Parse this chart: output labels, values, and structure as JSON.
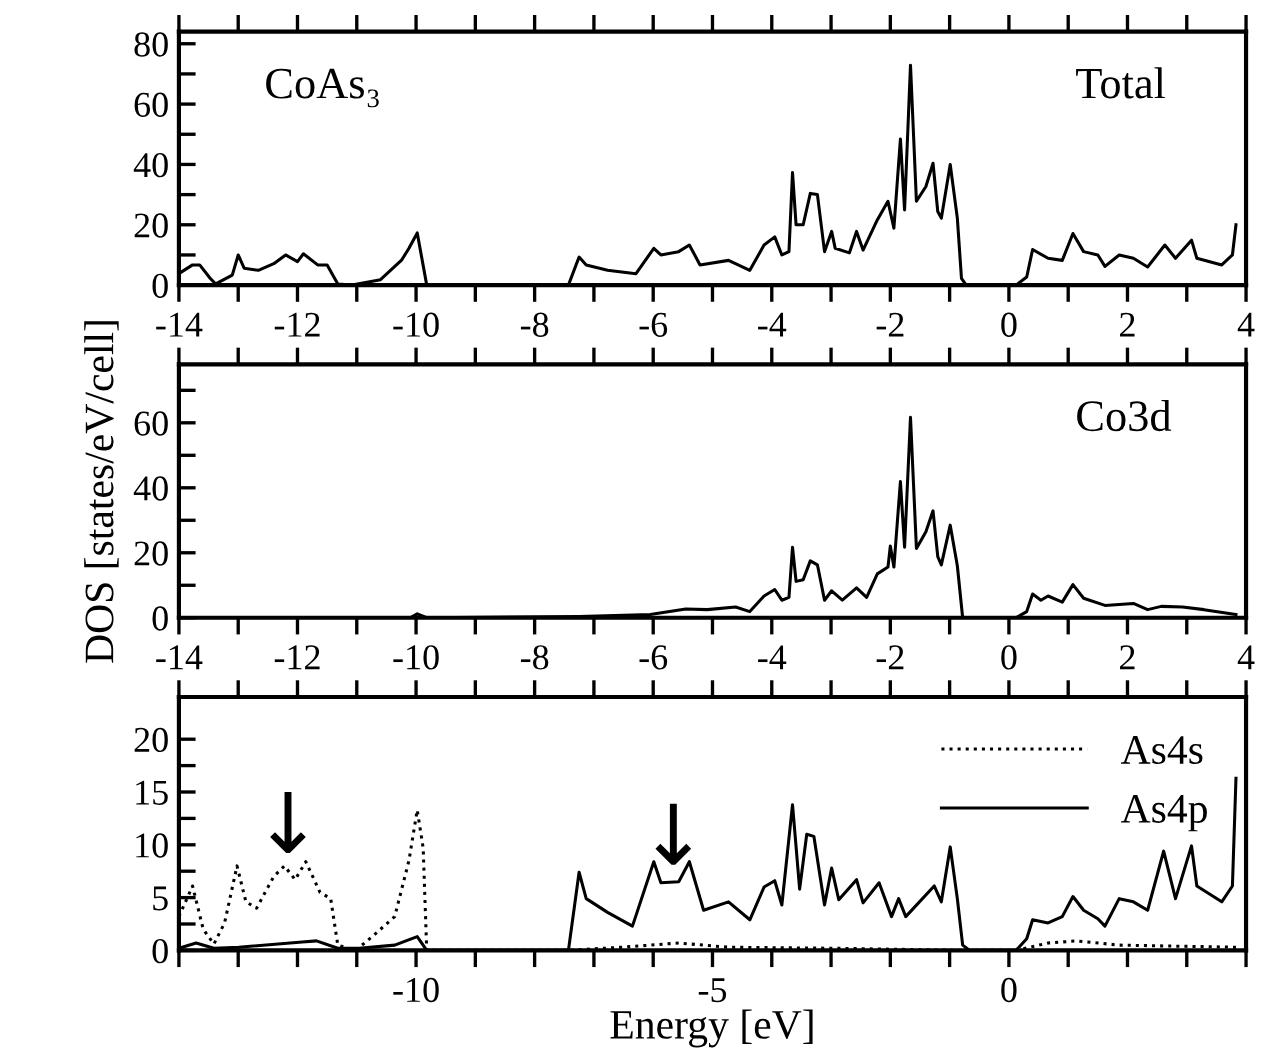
{
  "chart_data": [
    {
      "type": "line",
      "annotations": [
        "CoAs₃",
        "Total"
      ],
      "xlim": [
        -14,
        4
      ],
      "xticks": [
        -14,
        {
          "value": -13,
          "label": null
        },
        -12,
        {
          "value": -11,
          "label": null
        },
        -10,
        {
          "value": -9,
          "label": null
        },
        -8,
        {
          "value": -7,
          "label": null
        },
        -6,
        {
          "value": -5,
          "label": null
        },
        -4,
        {
          "value": -3,
          "label": null
        },
        -2,
        {
          "value": -1,
          "label": null
        },
        0,
        {
          "value": 1,
          "label": null
        },
        2,
        {
          "value": 3,
          "label": null
        },
        4
      ],
      "ylim": [
        0,
        84
      ],
      "yticks": [
        0,
        {
          "value": 10,
          "label": null
        },
        20,
        {
          "value": 30,
          "label": null
        },
        40,
        {
          "value": 50,
          "label": null
        },
        60,
        {
          "value": 70,
          "label": null
        },
        80
      ],
      "series": [
        {
          "color": "#000000",
          "line_style": "solid",
          "x": [
            -14.0,
            -13.77,
            -13.65,
            -13.47,
            -13.38,
            -13.1,
            -13.0,
            -12.9,
            -12.66,
            -12.4,
            -12.2,
            -12.0,
            -11.9,
            -11.66,
            -11.5,
            -11.32,
            -11.08,
            -10.6,
            -10.24,
            -10.12,
            -9.98,
            -9.82,
            -7.43,
            -7.25,
            -7.13,
            -6.77,
            -6.29,
            -5.99,
            -5.87,
            -5.57,
            -5.39,
            -5.21,
            -4.73,
            -4.37,
            -4.13,
            -3.95,
            -3.83,
            -3.71,
            -3.65,
            -3.59,
            -3.47,
            -3.35,
            -3.23,
            -3.11,
            -2.99,
            -2.93,
            -2.69,
            -2.57,
            -2.46,
            -2.22,
            -2.04,
            -1.94,
            -1.83,
            -1.76,
            -1.66,
            -1.56,
            -1.4,
            -1.28,
            -1.2,
            -1.14,
            -0.99,
            -0.87,
            -0.8,
            -0.72,
            0.12,
            0.3,
            0.4,
            0.66,
            0.9,
            1.08,
            1.26,
            1.5,
            1.62,
            1.86,
            2.1,
            2.34,
            2.63,
            2.81,
            3.08,
            3.17,
            3.59,
            3.77,
            3.83
          ],
          "values": [
            3.8,
            6.7,
            6.7,
            2.2,
            0.4,
            3.3,
            10,
            5.6,
            4.9,
            7.1,
            10,
            7.8,
            10.4,
            6.7,
            6.7,
            0.4,
            0,
            1.8,
            8.4,
            12.2,
            17.3,
            0,
            0,
            9.3,
            6.7,
            4.9,
            3.8,
            12.2,
            10,
            11.1,
            13.3,
            6.7,
            8.2,
            4.9,
            13.3,
            16,
            10,
            11.1,
            37.3,
            20,
            20,
            30.4,
            30,
            11.1,
            17.8,
            12.2,
            10.7,
            17.8,
            11.6,
            21.6,
            27.8,
            18.9,
            48.4,
            24.9,
            72.9,
            27.8,
            32.7,
            40.4,
            24.4,
            22.2,
            40,
            22.2,
            2.2,
            0,
            0,
            2.7,
            11.8,
            8.9,
            8.2,
            17.1,
            11.1,
            10,
            6.2,
            10,
            8.9,
            6,
            13.3,
            8.9,
            14.9,
            8.9,
            6.7,
            10,
            20
          ]
        }
      ]
    },
    {
      "type": "line",
      "annotations": [
        "Co3d"
      ],
      "ylabel": "DOS [states/eV/cell]",
      "xlim": [
        -14,
        4
      ],
      "xticks": [
        -14,
        {
          "value": -13,
          "label": null
        },
        -12,
        {
          "value": -11,
          "label": null
        },
        -10,
        {
          "value": -9,
          "label": null
        },
        -8,
        {
          "value": -7,
          "label": null
        },
        -6,
        {
          "value": -5,
          "label": null
        },
        -4,
        {
          "value": -3,
          "label": null
        },
        -2,
        {
          "value": -1,
          "label": null
        },
        0,
        {
          "value": 1,
          "label": null
        },
        2,
        {
          "value": 3,
          "label": null
        },
        4
      ],
      "ylim": [
        0,
        78
      ],
      "yticks": [
        0,
        {
          "value": 10,
          "label": null
        },
        20,
        {
          "value": 30,
          "label": null
        },
        40,
        {
          "value": 50,
          "label": null
        },
        60,
        {
          "value": 70,
          "label": null
        }
      ],
      "series": [
        {
          "color": "#000000",
          "line_style": "solid",
          "x": [
            -14,
            -10.1,
            -9.98,
            -9.82,
            -7.25,
            -6.05,
            -5.45,
            -5.09,
            -4.61,
            -4.37,
            -4.13,
            -3.95,
            -3.83,
            -3.71,
            -3.65,
            -3.59,
            -3.47,
            -3.35,
            -3.23,
            -3.11,
            -2.99,
            -2.81,
            -2.57,
            -2.4,
            -2.22,
            -2.04,
            -2.0,
            -1.94,
            -1.83,
            -1.76,
            -1.66,
            -1.56,
            -1.4,
            -1.28,
            -1.2,
            -1.14,
            -0.99,
            -0.87,
            -0.78,
            0.12,
            0.3,
            0.4,
            0.54,
            0.66,
            0.9,
            1.08,
            1.26,
            1.62,
            2.1,
            2.34,
            2.57,
            2.93,
            3.29,
            3.83
          ],
          "values": [
            0,
            0,
            1.2,
            0,
            0.4,
            1,
            2.7,
            2.5,
            3.3,
            1.9,
            6.7,
            8.7,
            5.4,
            6.3,
            21.7,
            11.2,
            11.7,
            17.5,
            16.3,
            5.4,
            8.3,
            5.4,
            9.2,
            6.3,
            13.5,
            15.6,
            22.1,
            15.6,
            41.9,
            21.7,
            61.7,
            21.3,
            26.5,
            32.9,
            18.8,
            16.3,
            28.5,
            16,
            0,
            0,
            1.9,
            7.3,
            5.4,
            6.7,
            4.8,
            10.2,
            6,
            3.8,
            4.4,
            2.5,
            3.5,
            3.3,
            2.5,
            1
          ]
        }
      ]
    },
    {
      "type": "line",
      "xlabel": "Energy [eV]",
      "legend": "top right",
      "annotations": [
        {
          "text": "↓",
          "x": -12.16,
          "y": 7.6
        },
        {
          "text": "↓",
          "x": -5.66,
          "y": 6.5
        }
      ],
      "xlim": [
        -14,
        4
      ],
      "xticks": [
        {
          "value": -14,
          "label": null
        },
        {
          "value": -13,
          "label": null
        },
        {
          "value": -12,
          "label": null
        },
        {
          "value": -11,
          "label": null
        },
        -10,
        {
          "value": -9,
          "label": null
        },
        {
          "value": -8,
          "label": null
        },
        {
          "value": -7,
          "label": null
        },
        {
          "value": -6,
          "label": null
        },
        -5,
        {
          "value": -4,
          "label": null
        },
        {
          "value": -3,
          "label": null
        },
        {
          "value": -2,
          "label": null
        },
        {
          "value": -1,
          "label": null
        },
        0,
        {
          "value": 1,
          "label": null
        },
        {
          "value": 2,
          "label": null
        },
        {
          "value": 3,
          "label": null
        },
        {
          "value": 4,
          "label": null
        }
      ],
      "ylim": [
        0,
        24
      ],
      "yticks": [
        0,
        {
          "value": 2.5,
          "label": null
        },
        5,
        {
          "value": 7.5,
          "label": null
        },
        10,
        {
          "value": 12.5,
          "label": null
        },
        15,
        {
          "value": 17.5,
          "label": null
        },
        20
      ],
      "series": [
        {
          "name": "As4s",
          "color": "#000000",
          "line_style": "dotted",
          "x": [
            -14,
            -13.77,
            -13.59,
            -13.41,
            -13.23,
            -13.02,
            -12.87,
            -12.69,
            -12.4,
            -12.22,
            -12.04,
            -11.86,
            -11.62,
            -11.44,
            -11.32,
            -11.02,
            -10.72,
            -10.36,
            -10.12,
            -9.98,
            -9.88,
            -9.82,
            -7.43,
            -6.53,
            -5.57,
            -4.73,
            -2.93,
            -0.78,
            0.12,
            0.66,
            1.14,
            1.86,
            3.83
          ],
          "values": [
            3.2,
            6.1,
            2,
            0.6,
            2.6,
            8,
            4.6,
            4,
            7,
            8,
            6.7,
            8.4,
            5.5,
            4.9,
            0.5,
            0,
            1.4,
            3.2,
            8.5,
            13.3,
            9.7,
            0,
            0,
            0.3,
            0.7,
            0.3,
            0.2,
            0,
            0,
            0.7,
            0.9,
            0.5,
            0.3
          ]
        },
        {
          "name": "As4p",
          "color": "#000000",
          "line_style": "solid",
          "x": [
            -14,
            -13.71,
            -13.41,
            -12.99,
            -11.92,
            -11.68,
            -11.32,
            -10.96,
            -10.36,
            -9.98,
            -9.82,
            -7.43,
            -7.25,
            -7.13,
            -6.77,
            -6.35,
            -5.99,
            -5.87,
            -5.57,
            -5.39,
            -5.15,
            -4.73,
            -4.37,
            -4.13,
            -3.95,
            -3.83,
            -3.65,
            -3.53,
            -3.41,
            -3.29,
            -3.11,
            -2.99,
            -2.87,
            -2.57,
            -2.46,
            -2.19,
            -1.98,
            -1.86,
            -1.74,
            -1.26,
            -1.14,
            -0.99,
            -0.87,
            -0.78,
            -0.66,
            0.12,
            0.3,
            0.4,
            0.66,
            0.9,
            1.08,
            1.26,
            1.5,
            1.62,
            1.86,
            2.1,
            2.34,
            2.61,
            2.81,
            3.08,
            3.17,
            3.59,
            3.77,
            3.83
          ],
          "values": [
            0.2,
            0.7,
            0.2,
            0.3,
            0.8,
            0.9,
            0.2,
            0.2,
            0.5,
            1.3,
            0,
            0,
            7.4,
            4.9,
            3.6,
            2.3,
            8.4,
            6.4,
            6.5,
            8.4,
            3.8,
            4.6,
            2.9,
            6,
            6.6,
            4.3,
            13.8,
            5.8,
            11,
            10.8,
            4.3,
            7.8,
            4.8,
            6.7,
            4.5,
            6.4,
            3.2,
            4.9,
            3.2,
            6.1,
            4.6,
            9.8,
            4.9,
            0.5,
            0,
            0,
            1.1,
            2.9,
            2.6,
            3.2,
            5.1,
            3.8,
            3,
            2.3,
            4.9,
            4.6,
            3.8,
            9.4,
            4.9,
            9.9,
            6.1,
            4.6,
            6.1,
            16.3
          ]
        }
      ]
    }
  ]
}
